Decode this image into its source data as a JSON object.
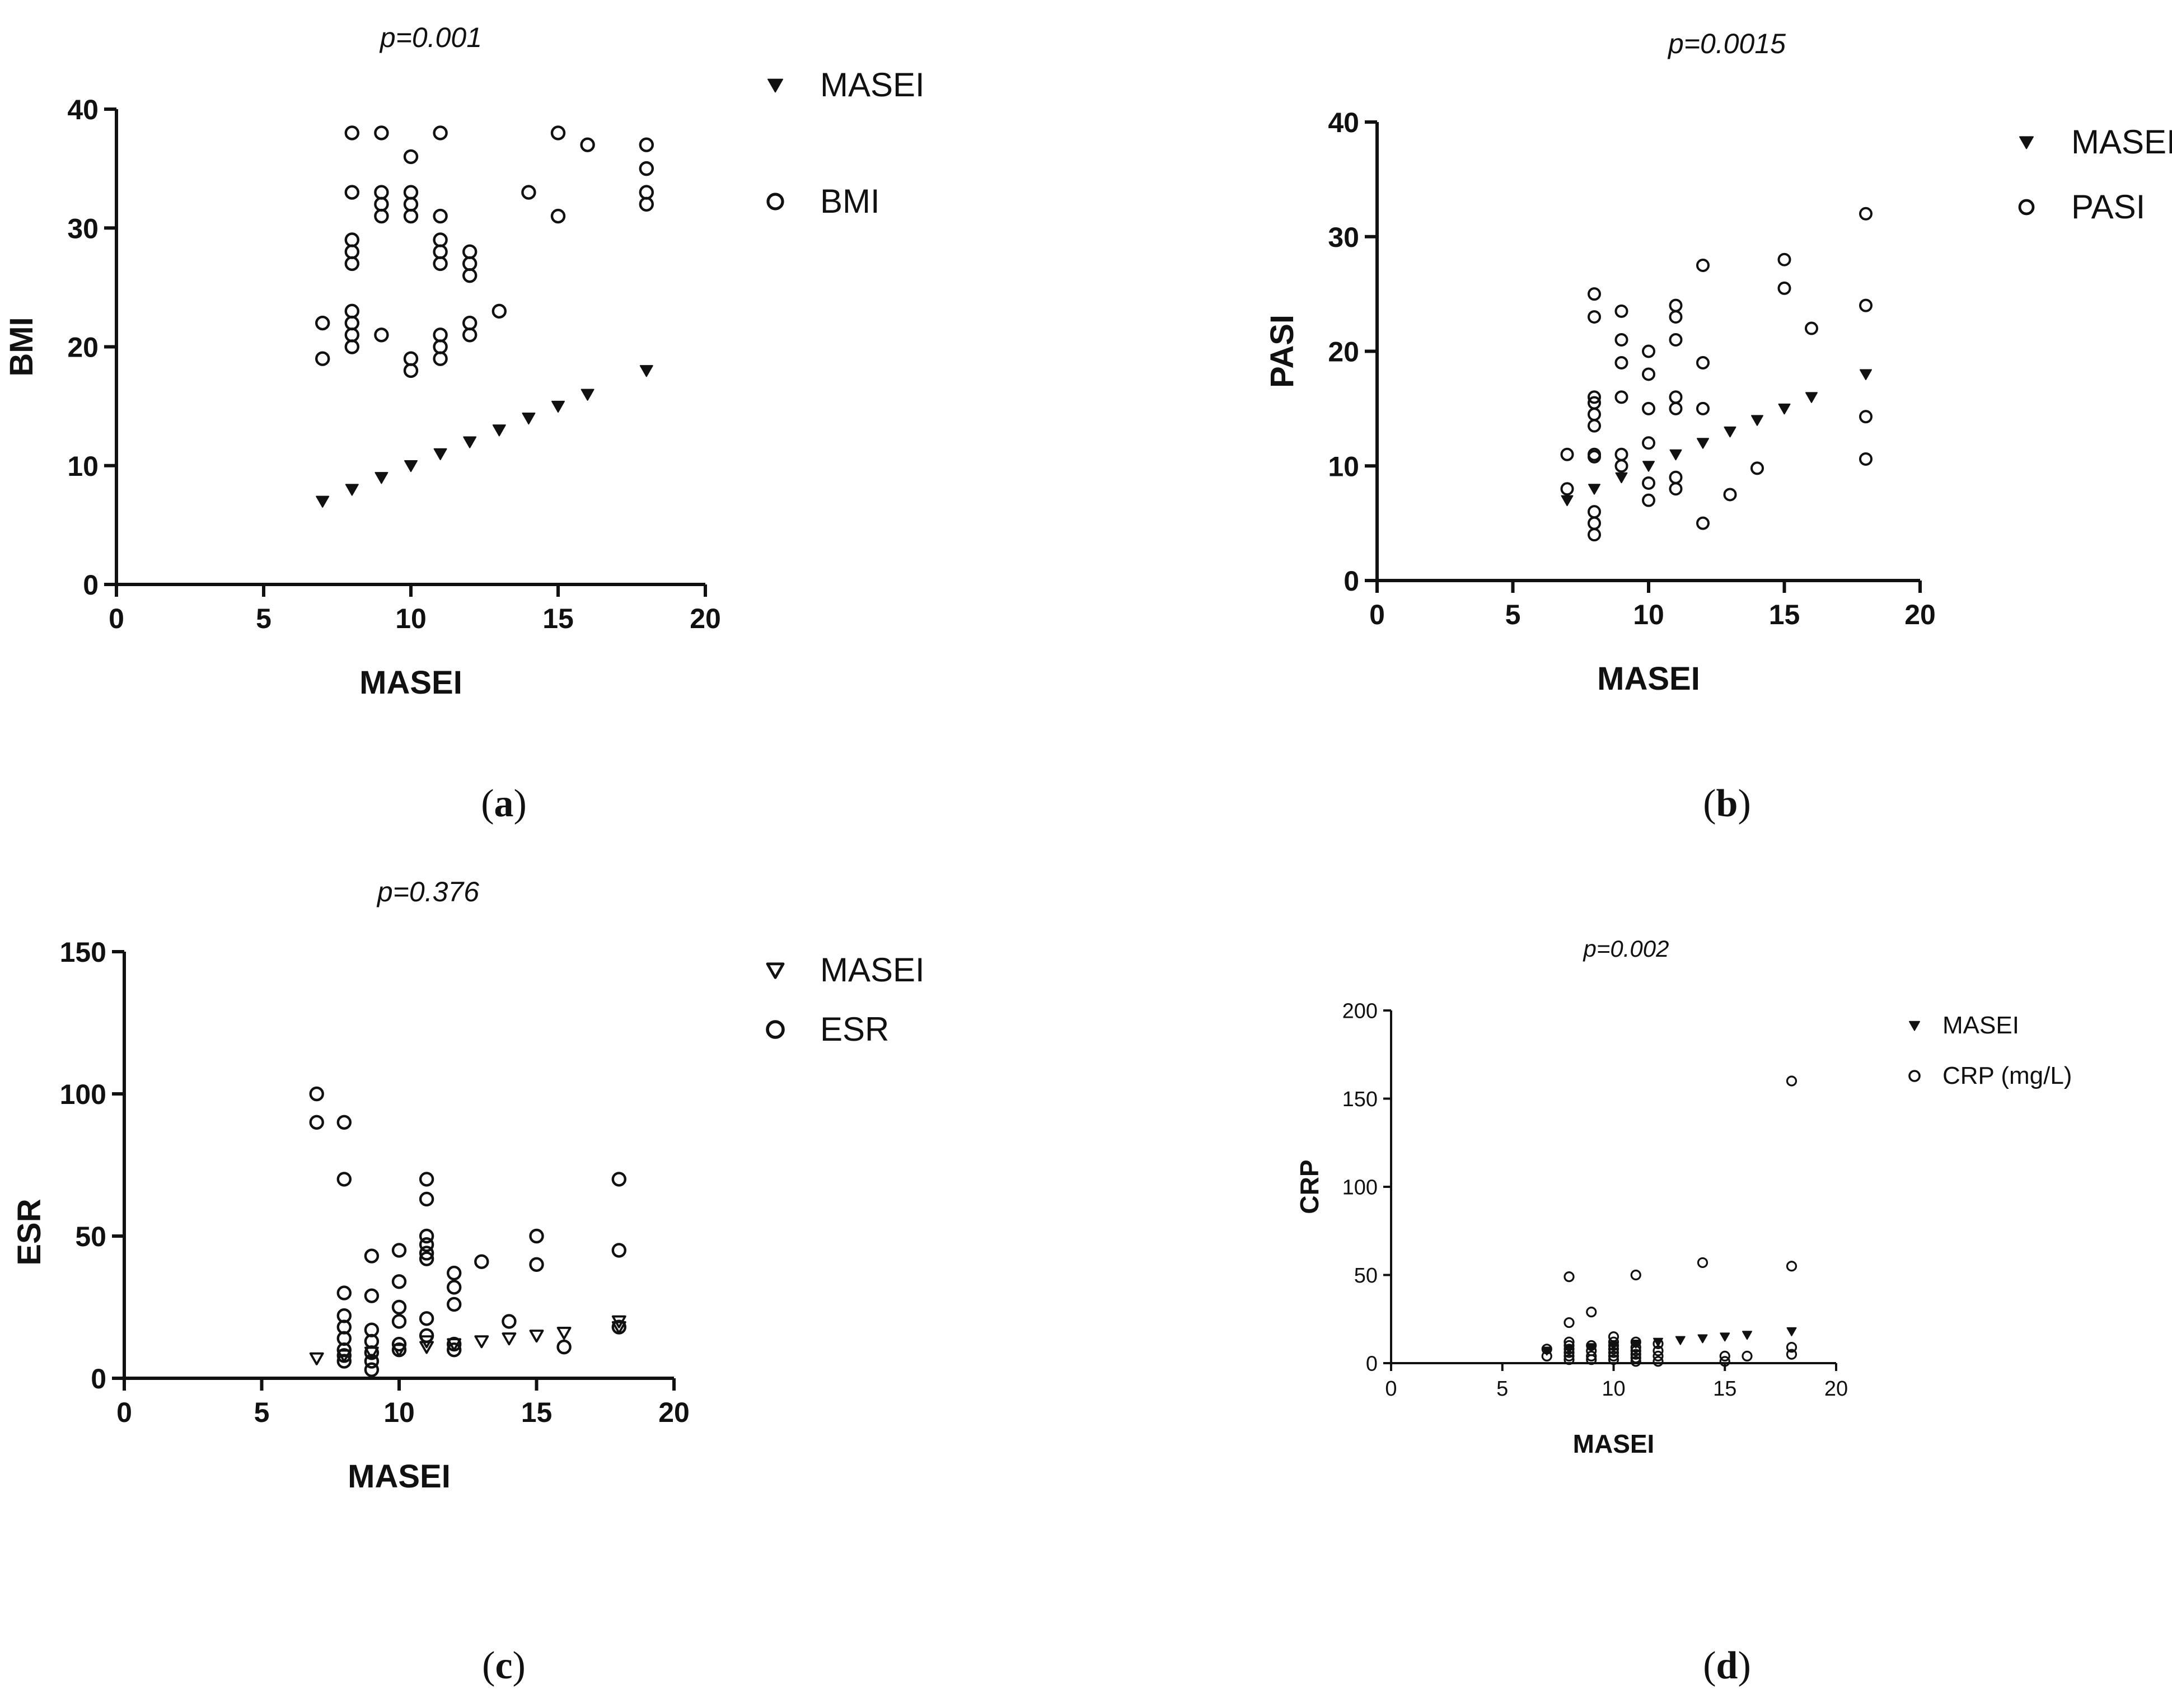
{
  "chart_data": [
    {
      "id": "a",
      "type": "scatter",
      "title": "p=0.001",
      "xlabel": "MASEI",
      "ylabel": "BMI",
      "xlim": [
        0,
        20
      ],
      "ylim": [
        0,
        40
      ],
      "xticks": [
        0,
        5,
        10,
        15,
        20
      ],
      "yticks": [
        0,
        10,
        20,
        30,
        40
      ],
      "caption_open": "(",
      "caption_letter": "a",
      "caption_close": ")",
      "legend": [
        {
          "name": "MASEI",
          "marker": "triangle-down-filled"
        },
        {
          "name": "BMI",
          "marker": "circle-open"
        }
      ],
      "series": [
        {
          "name": "MASEI",
          "marker": "triangle-down-filled",
          "points": [
            [
              7,
              7
            ],
            [
              8,
              8
            ],
            [
              9,
              9
            ],
            [
              10,
              10
            ],
            [
              11,
              11
            ],
            [
              12,
              12
            ],
            [
              13,
              13
            ],
            [
              14,
              14
            ],
            [
              15,
              15
            ],
            [
              16,
              16
            ],
            [
              18,
              18
            ]
          ]
        },
        {
          "name": "BMI",
          "marker": "circle-open",
          "points": [
            [
              7,
              22
            ],
            [
              7,
              19
            ],
            [
              8,
              38
            ],
            [
              8,
              33
            ],
            [
              8,
              29
            ],
            [
              8,
              28
            ],
            [
              8,
              27
            ],
            [
              8,
              23
            ],
            [
              8,
              22
            ],
            [
              8,
              21
            ],
            [
              8,
              20
            ],
            [
              9,
              38
            ],
            [
              9,
              33
            ],
            [
              9,
              32
            ],
            [
              9,
              31
            ],
            [
              9,
              21
            ],
            [
              10,
              36
            ],
            [
              10,
              33
            ],
            [
              10,
              32
            ],
            [
              10,
              31
            ],
            [
              10,
              19
            ],
            [
              10,
              18
            ],
            [
              11,
              38
            ],
            [
              11,
              31
            ],
            [
              11,
              29
            ],
            [
              11,
              28
            ],
            [
              11,
              27
            ],
            [
              11,
              21
            ],
            [
              11,
              20
            ],
            [
              11,
              19
            ],
            [
              12,
              28
            ],
            [
              12,
              27
            ],
            [
              12,
              26
            ],
            [
              12,
              22
            ],
            [
              12,
              21
            ],
            [
              13,
              23
            ],
            [
              14,
              33
            ],
            [
              15,
              38
            ],
            [
              15,
              31
            ],
            [
              16,
              37
            ],
            [
              18,
              37
            ],
            [
              18,
              35
            ],
            [
              18,
              33
            ],
            [
              18,
              32
            ]
          ]
        }
      ]
    },
    {
      "id": "b",
      "type": "scatter",
      "title": "p=0.0015",
      "xlabel": "MASEI",
      "ylabel": "PASI",
      "xlim": [
        0,
        20
      ],
      "ylim": [
        0,
        40
      ],
      "xticks": [
        0,
        5,
        10,
        15,
        20
      ],
      "yticks": [
        0,
        10,
        20,
        30,
        40
      ],
      "caption_open": "(",
      "caption_letter": "b",
      "caption_close": ")",
      "legend": [
        {
          "name": "MASEI",
          "marker": "triangle-down-filled"
        },
        {
          "name": "PASI",
          "marker": "circle-open"
        }
      ],
      "series": [
        {
          "name": "MASEI",
          "marker": "triangle-down-filled",
          "points": [
            [
              7,
              7
            ],
            [
              8,
              8
            ],
            [
              9,
              9
            ],
            [
              10,
              10
            ],
            [
              11,
              11
            ],
            [
              12,
              12
            ],
            [
              13,
              13
            ],
            [
              14,
              14
            ],
            [
              15,
              15
            ],
            [
              16,
              16
            ],
            [
              18,
              18
            ]
          ]
        },
        {
          "name": "PASI",
          "marker": "circle-open",
          "points": [
            [
              7,
              11
            ],
            [
              7,
              8
            ],
            [
              8,
              25
            ],
            [
              8,
              23
            ],
            [
              8,
              16
            ],
            [
              8,
              15.5
            ],
            [
              8,
              14.5
            ],
            [
              8,
              13.5
            ],
            [
              8,
              11
            ],
            [
              8,
              10.8
            ],
            [
              8,
              6
            ],
            [
              8,
              5
            ],
            [
              8,
              4
            ],
            [
              9,
              23.5
            ],
            [
              9,
              21
            ],
            [
              9,
              19
            ],
            [
              9,
              16
            ],
            [
              9,
              11
            ],
            [
              9,
              10
            ],
            [
              10,
              20
            ],
            [
              10,
              18
            ],
            [
              10,
              15
            ],
            [
              10,
              12
            ],
            [
              10,
              8.5
            ],
            [
              10,
              7
            ],
            [
              11,
              24
            ],
            [
              11,
              23
            ],
            [
              11,
              21
            ],
            [
              11,
              16
            ],
            [
              11,
              15
            ],
            [
              11,
              9
            ],
            [
              11,
              8
            ],
            [
              12,
              27.5
            ],
            [
              12,
              19
            ],
            [
              12,
              15
            ],
            [
              12,
              5
            ],
            [
              13,
              7.5
            ],
            [
              14,
              9.8
            ],
            [
              15,
              28
            ],
            [
              15,
              25.5
            ],
            [
              16,
              22
            ],
            [
              18,
              32
            ],
            [
              18,
              24
            ],
            [
              18,
              14.3
            ],
            [
              18,
              10.6
            ]
          ]
        }
      ]
    },
    {
      "id": "c",
      "type": "scatter",
      "title": "p=0.376",
      "xlabel": "MASEI",
      "ylabel": "ESR",
      "xlim": [
        0,
        20
      ],
      "ylim": [
        0,
        150
      ],
      "xticks": [
        0,
        5,
        10,
        15,
        20
      ],
      "yticks": [
        0,
        50,
        100,
        150
      ],
      "caption_open": "(",
      "caption_letter": "c",
      "caption_close": ")",
      "legend": [
        {
          "name": "MASEI",
          "marker": "triangle-down-open"
        },
        {
          "name": "ESR",
          "marker": "circle-open"
        }
      ],
      "series": [
        {
          "name": "MASEI",
          "marker": "triangle-down-open",
          "points": [
            [
              7,
              7
            ],
            [
              8,
              8
            ],
            [
              9,
              9
            ],
            [
              10,
              10
            ],
            [
              11,
              11
            ],
            [
              11,
              13
            ],
            [
              12,
              12
            ],
            [
              13,
              13
            ],
            [
              14,
              14
            ],
            [
              15,
              15
            ],
            [
              16,
              16
            ],
            [
              18,
              18
            ],
            [
              18,
              20
            ]
          ]
        },
        {
          "name": "ESR",
          "marker": "circle-open",
          "points": [
            [
              7,
              100
            ],
            [
              7,
              90
            ],
            [
              8,
              90
            ],
            [
              8,
              70
            ],
            [
              8,
              30
            ],
            [
              8,
              22
            ],
            [
              8,
              18
            ],
            [
              8,
              14
            ],
            [
              8,
              10
            ],
            [
              8,
              8
            ],
            [
              8,
              6
            ],
            [
              9,
              43
            ],
            [
              9,
              29
            ],
            [
              9,
              17
            ],
            [
              9,
              13
            ],
            [
              9,
              9
            ],
            [
              9,
              6
            ],
            [
              9,
              3
            ],
            [
              10,
              45
            ],
            [
              10,
              34
            ],
            [
              10,
              25
            ],
            [
              10,
              20
            ],
            [
              10,
              12
            ],
            [
              10,
              10
            ],
            [
              11,
              70
            ],
            [
              11,
              63
            ],
            [
              11,
              50
            ],
            [
              11,
              47
            ],
            [
              11,
              44
            ],
            [
              11,
              42
            ],
            [
              11,
              21
            ],
            [
              11,
              15
            ],
            [
              12,
              37
            ],
            [
              12,
              32
            ],
            [
              12,
              26
            ],
            [
              12,
              12
            ],
            [
              12,
              10
            ],
            [
              13,
              41
            ],
            [
              14,
              20
            ],
            [
              15,
              50
            ],
            [
              15,
              40
            ],
            [
              16,
              11
            ],
            [
              18,
              70
            ],
            [
              18,
              45
            ],
            [
              18,
              18
            ]
          ]
        }
      ]
    },
    {
      "id": "d",
      "type": "scatter",
      "title": "p=0.002",
      "xlabel": "MASEI",
      "ylabel": "CRP",
      "xlim": [
        0,
        20
      ],
      "ylim": [
        0,
        200
      ],
      "xticks": [
        0,
        5,
        10,
        15,
        20
      ],
      "yticks": [
        0,
        50,
        100,
        150,
        200
      ],
      "caption_open": "(",
      "caption_letter": "d",
      "caption_close": ")",
      "legend": [
        {
          "name": "MASEI",
          "marker": "triangle-down-filled"
        },
        {
          "name": "CRP (mg/L)",
          "marker": "circle-open"
        }
      ],
      "series": [
        {
          "name": "MASEI",
          "marker": "triangle-down-filled",
          "points": [
            [
              7,
              7
            ],
            [
              8,
              8
            ],
            [
              9,
              9
            ],
            [
              10,
              10
            ],
            [
              11,
              11
            ],
            [
              12,
              12
            ],
            [
              13,
              13
            ],
            [
              14,
              14
            ],
            [
              15,
              15
            ],
            [
              16,
              16
            ],
            [
              18,
              18
            ]
          ]
        },
        {
          "name": "CRP (mg/L)",
          "marker": "circle-open",
          "points": [
            [
              7,
              8
            ],
            [
              7,
              4
            ],
            [
              8,
              49
            ],
            [
              8,
              23
            ],
            [
              8,
              12
            ],
            [
              8,
              10
            ],
            [
              8,
              8
            ],
            [
              8,
              6
            ],
            [
              8,
              4
            ],
            [
              8,
              2
            ],
            [
              9,
              29
            ],
            [
              9,
              10
            ],
            [
              9,
              7
            ],
            [
              9,
              4
            ],
            [
              9,
              2
            ],
            [
              10,
              15
            ],
            [
              10,
              12
            ],
            [
              10,
              10
            ],
            [
              10,
              8
            ],
            [
              10,
              6
            ],
            [
              10,
              4
            ],
            [
              10,
              2
            ],
            [
              11,
              50
            ],
            [
              11,
              12
            ],
            [
              11,
              9
            ],
            [
              11,
              7
            ],
            [
              11,
              5
            ],
            [
              11,
              3
            ],
            [
              11,
              1
            ],
            [
              12,
              11
            ],
            [
              12,
              7
            ],
            [
              12,
              4
            ],
            [
              12,
              1
            ],
            [
              14,
              57
            ],
            [
              15,
              4
            ],
            [
              15,
              1
            ],
            [
              16,
              4
            ],
            [
              18,
              160
            ],
            [
              18,
              55
            ],
            [
              18,
              9
            ],
            [
              18,
              5
            ]
          ]
        }
      ]
    }
  ]
}
